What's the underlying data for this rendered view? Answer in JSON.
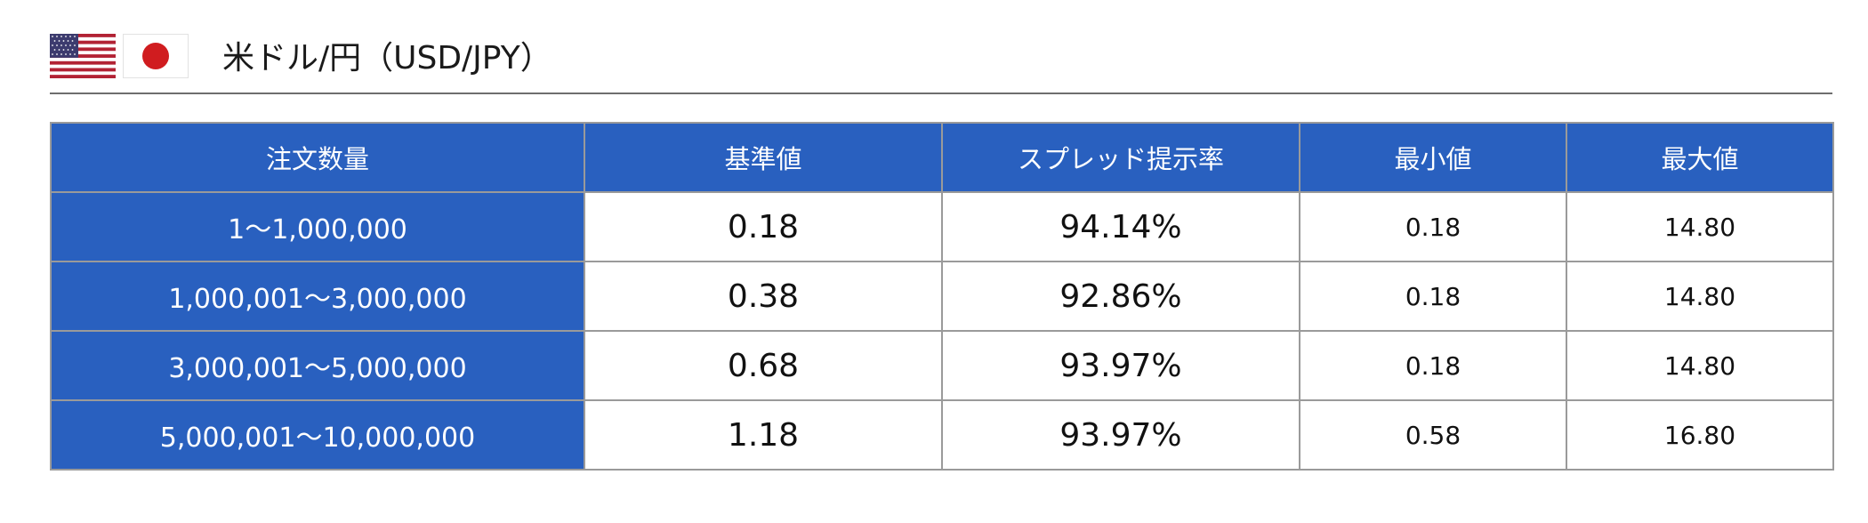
{
  "header": {
    "title": "米ドル/円（USD/JPY）",
    "flags": [
      {
        "name": "us-flag-icon",
        "colors": {
          "stripe_red": "#b22234",
          "stripe_white": "#ffffff",
          "canton": "#3c3b6e"
        }
      },
      {
        "name": "japan-flag-icon",
        "colors": {
          "field": "#ffffff",
          "disc": "#d01c1f"
        }
      }
    ]
  },
  "table": {
    "columns": [
      "注文数量",
      "基準値",
      "スプレッド提示率",
      "最小値",
      "最大値"
    ],
    "rows": [
      {
        "quantity": "1〜1,000,000",
        "base": "0.18",
        "rate": "94.14%",
        "min": "0.18",
        "max": "14.80"
      },
      {
        "quantity": "1,000,001〜3,000,000",
        "base": "0.38",
        "rate": "92.86%",
        "min": "0.18",
        "max": "14.80"
      },
      {
        "quantity": "3,000,001〜5,000,000",
        "base": "0.68",
        "rate": "93.97%",
        "min": "0.18",
        "max": "14.80"
      },
      {
        "quantity": "5,000,001〜10,000,000",
        "base": "1.18",
        "rate": "93.97%",
        "min": "0.58",
        "max": "16.80"
      }
    ]
  },
  "colors": {
    "header_blue": "#2960bf",
    "border": "#9a9a9a",
    "rule": "#6e6e6e"
  }
}
